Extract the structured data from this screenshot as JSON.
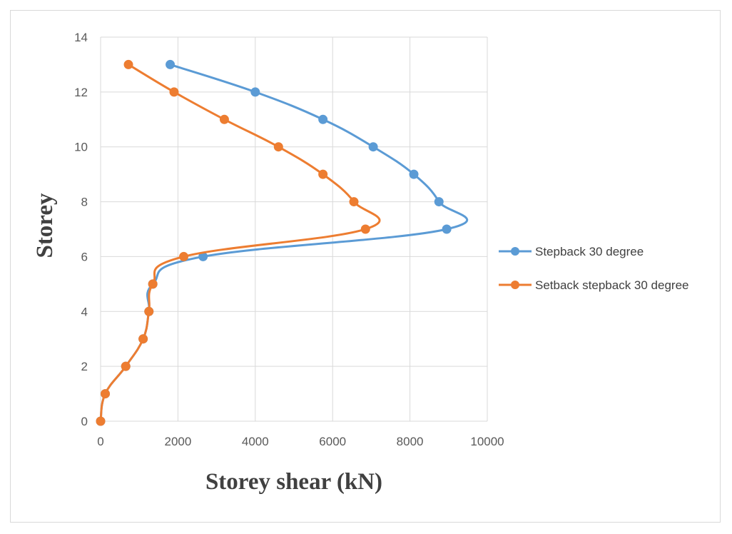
{
  "chart_data": {
    "type": "line",
    "xlabel": "Storey shear (kN)",
    "ylabel": "Storey",
    "xlim": [
      0,
      10000
    ],
    "ylim": [
      0,
      14
    ],
    "x_ticks": [
      "0",
      "2000",
      "4000",
      "6000",
      "8000",
      "10000"
    ],
    "y_ticks": [
      "0",
      "2",
      "4",
      "6",
      "8",
      "10",
      "12",
      "14"
    ],
    "grid": true,
    "smooth": true,
    "legend_position": "right",
    "series": [
      {
        "name": "Stepback 30 degree",
        "color": "#5B9BD5",
        "points": [
          [
            0,
            0
          ],
          [
            120,
            1
          ],
          [
            650,
            2
          ],
          [
            1100,
            3
          ],
          [
            1250,
            4
          ],
          [
            1350,
            5
          ],
          [
            2650,
            6
          ],
          [
            8950,
            7
          ],
          [
            8750,
            8
          ],
          [
            8100,
            9
          ],
          [
            7050,
            10
          ],
          [
            5750,
            11
          ],
          [
            4000,
            12
          ],
          [
            1800,
            13
          ]
        ]
      },
      {
        "name": "Setback stepback 30 degree",
        "color": "#ED7D31",
        "points": [
          [
            0,
            0
          ],
          [
            120,
            1
          ],
          [
            650,
            2
          ],
          [
            1100,
            3
          ],
          [
            1250,
            4
          ],
          [
            1350,
            5
          ],
          [
            2150,
            6
          ],
          [
            6850,
            7
          ],
          [
            6550,
            8
          ],
          [
            5750,
            9
          ],
          [
            4600,
            10
          ],
          [
            3200,
            11
          ],
          [
            1900,
            12
          ],
          [
            720,
            13
          ]
        ]
      }
    ]
  }
}
